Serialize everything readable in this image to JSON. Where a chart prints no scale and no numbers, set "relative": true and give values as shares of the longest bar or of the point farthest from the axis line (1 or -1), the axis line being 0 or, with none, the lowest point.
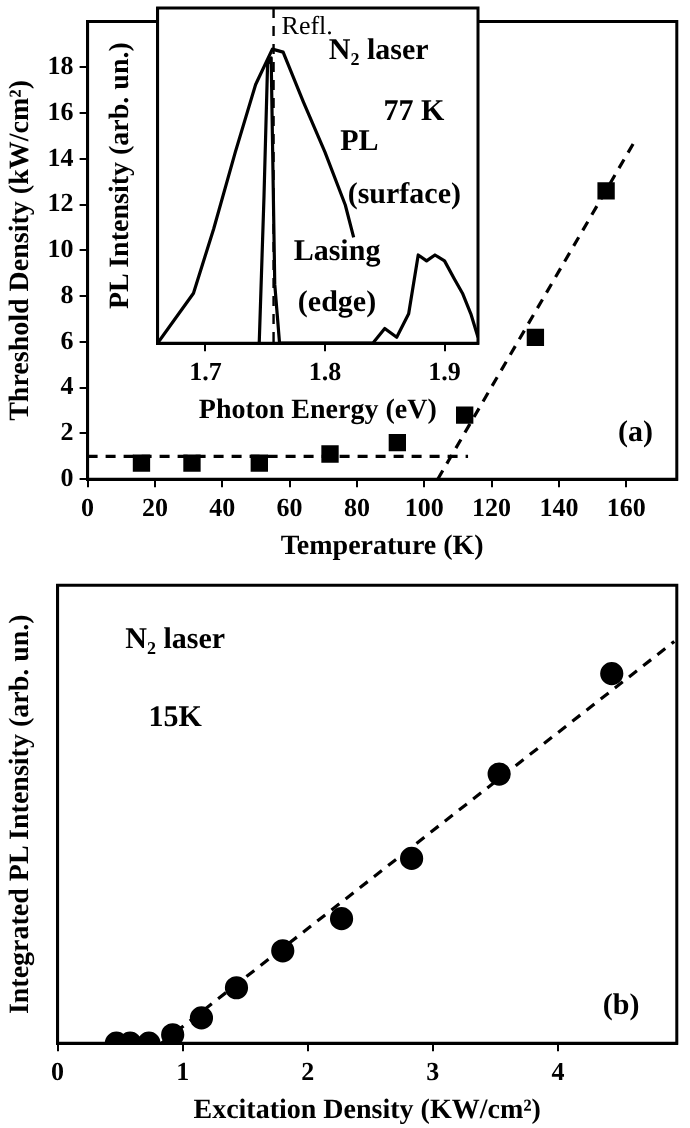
{
  "chart_data": [
    {
      "type": "scatter",
      "xlabel": "Temperature (K)",
      "ylabel": "Threshold Density (kW/cm²)",
      "x": [
        16,
        31,
        51,
        72,
        92,
        112,
        133,
        154
      ],
      "xlim": [
        0,
        175
      ],
      "xticks": [
        0,
        20,
        40,
        60,
        80,
        100,
        120,
        140,
        160
      ],
      "ylim": [
        0,
        20
      ],
      "yticks": [
        0,
        2,
        4,
        6,
        8,
        10,
        12,
        14,
        16,
        18
      ],
      "grid": false,
      "annotations": [
        "(a)"
      ],
      "series": [
        {
          "color": "#000000",
          "marker": "square",
          "values": [
            0.7,
            0.7,
            0.7,
            1.1,
            1.6,
            2.8,
            6.2,
            12.6
          ]
        },
        {
          "type": "line",
          "color": "#000000",
          "marker": "none",
          "line_style": "dashed",
          "x": [
            0,
            113
          ],
          "values": [
            1,
            1
          ]
        },
        {
          "type": "line",
          "color": "#000000",
          "marker": "none",
          "line_style": "dashed",
          "x": [
            104,
            163
          ],
          "values": [
            0,
            14.9
          ]
        }
      ]
    },
    {
      "type": "line",
      "relative": true,
      "xlabel": "Photon Energy (eV)",
      "ylabel": "PL Intensity (arb. un.)",
      "xlim": [
        1.66,
        1.928
      ],
      "xticks": [
        1.7,
        1.8,
        1.9
      ],
      "grid": false,
      "annotations": [
        "N₂ laser",
        "77 K",
        "PL",
        "(surface)",
        "Lasing",
        "(edge)"
      ],
      "ref_lines": [
        {
          "axis": "x",
          "value": 1.757,
          "label": "Refl.",
          "line_style": "dashed",
          "color": "#000000"
        }
      ],
      "series": [
        {
          "color": "#000000",
          "marker": "none",
          "x": [
            1.66,
            1.69,
            1.707,
            1.725,
            1.742,
            1.756,
            1.765,
            1.782,
            1.8,
            1.817,
            1.824
          ],
          "values": [
            0,
            0.17,
            0.39,
            0.65,
            0.88,
            1,
            0.99,
            0.82,
            0.65,
            0.47,
            0.36
          ]
        },
        {
          "color": "#000000",
          "marker": "none",
          "x": [
            1.745,
            1.749,
            1.752,
            1.755,
            1.758,
            1.762,
            1.84,
            1.85,
            1.86,
            1.87,
            1.878,
            1.885,
            1.892,
            1.9,
            1.908,
            1.915,
            1.922,
            1.928
          ],
          "values": [
            0,
            0.5,
            0.95,
            0.97,
            0.2,
            0,
            0,
            0.05,
            0.02,
            0.1,
            0.3,
            0.28,
            0.3,
            0.28,
            0.22,
            0.17,
            0.1,
            0.02
          ]
        }
      ]
    },
    {
      "type": "scatter",
      "relative": true,
      "xlabel": "Excitation Density (KW/cm²)",
      "ylabel": "Integrated PL Intensity (arb. un.)",
      "x": [
        0.47,
        0.58,
        0.73,
        0.92,
        1.15,
        1.43,
        1.8,
        2.27,
        2.83,
        3.53,
        4.43
      ],
      "xlim": [
        0,
        4.95
      ],
      "xticks": [
        0,
        1,
        2,
        3,
        4
      ],
      "grid": false,
      "annotations": [
        "N₂ laser",
        "15K",
        "(b)"
      ],
      "series": [
        {
          "color": "#000000",
          "marker": "circle",
          "values": [
            0,
            0,
            0,
            0.021,
            0.063,
            0.138,
            0.23,
            0.31,
            0.46,
            0.67,
            0.92
          ]
        },
        {
          "type": "line",
          "color": "#000000",
          "marker": "none",
          "line_style": "dashed",
          "x": [
            0.83,
            4.93
          ],
          "values": [
            0,
            1
          ]
        }
      ]
    }
  ]
}
